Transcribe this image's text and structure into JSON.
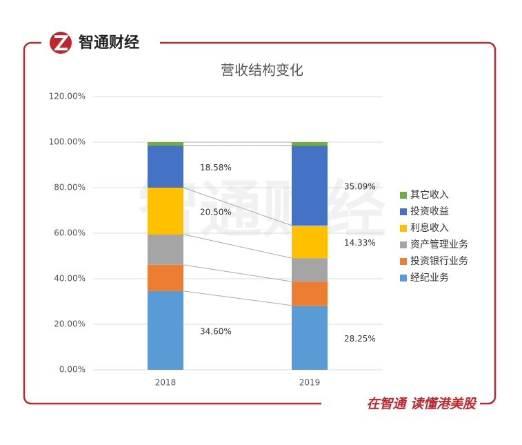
{
  "header": {
    "brand": "智通财经"
  },
  "watermark": "智通财经",
  "footer": {
    "slogan": "在智通  读懂港美股"
  },
  "chart_data": {
    "type": "stacked_bar",
    "title": "营收结构变化",
    "categories": [
      "2018",
      "2019"
    ],
    "series": [
      {
        "name": "经纪业务",
        "color": "#5b9bd5",
        "values": [
          34.6,
          28.25
        ],
        "value_labels": [
          "34.60%",
          "28.25%"
        ]
      },
      {
        "name": "投资银行业务",
        "color": "#ed7d31",
        "values": [
          11.5,
          10.5
        ]
      },
      {
        "name": "资产管理业务",
        "color": "#a5a5a5",
        "values": [
          13.4,
          10.3
        ]
      },
      {
        "name": "利息收入",
        "color": "#ffc000",
        "values": [
          20.5,
          14.33
        ],
        "value_labels": [
          "20.50%",
          "14.33%"
        ]
      },
      {
        "name": "投资收益",
        "color": "#4472c4",
        "values": [
          18.58,
          35.09
        ],
        "value_labels": [
          "18.58%",
          "35.09%"
        ]
      },
      {
        "name": "其它收入",
        "color": "#70ad47",
        "values": [
          1.42,
          1.53
        ]
      }
    ],
    "ylim": [
      0,
      120
    ],
    "yticks": [
      {
        "value": 0,
        "label": "0.00%"
      },
      {
        "value": 20,
        "label": "20.00%"
      },
      {
        "value": 40,
        "label": "40.00%"
      },
      {
        "value": 60,
        "label": "60.00%"
      },
      {
        "value": 80,
        "label": "80.00%"
      },
      {
        "value": 100,
        "label": "100.00%"
      },
      {
        "value": 120,
        "label": "120.00%"
      }
    ],
    "grid": true,
    "legend": "right"
  }
}
